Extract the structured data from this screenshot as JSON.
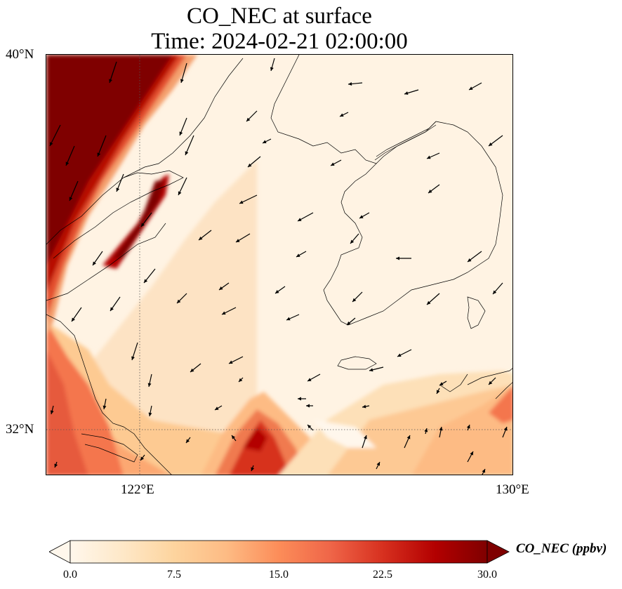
{
  "title": {
    "line1": "CO_NEC at surface",
    "line2": "Time: 2024-02-21 02:00:00"
  },
  "map": {
    "variable": "CO_NEC",
    "level": "surface",
    "lon_range": [
      119.5,
      130.0
    ],
    "lat_range": [
      31.0,
      40.0
    ],
    "gridlines": {
      "lon": [
        122
      ],
      "lat": [
        32
      ]
    },
    "lat_labels": [
      "40°N",
      "32°N"
    ],
    "lon_labels": [
      "122°E",
      "130°E"
    ],
    "colormap": "OrRd",
    "features": [
      "coastlines",
      "concentration field",
      "wind vectors"
    ]
  },
  "colorbar": {
    "label": "CO_NEC (ppbv)",
    "min": 0.0,
    "max": 30.0,
    "ticks": [
      "0.0",
      "7.5",
      "15.0",
      "22.5",
      "30.0"
    ],
    "colors": [
      "#fff7ec",
      "#fee8c8",
      "#fdd49e",
      "#fdbb84",
      "#fc8d59",
      "#ef6548",
      "#d7301f",
      "#b30000",
      "#7f0000"
    ],
    "extend": "both"
  }
}
